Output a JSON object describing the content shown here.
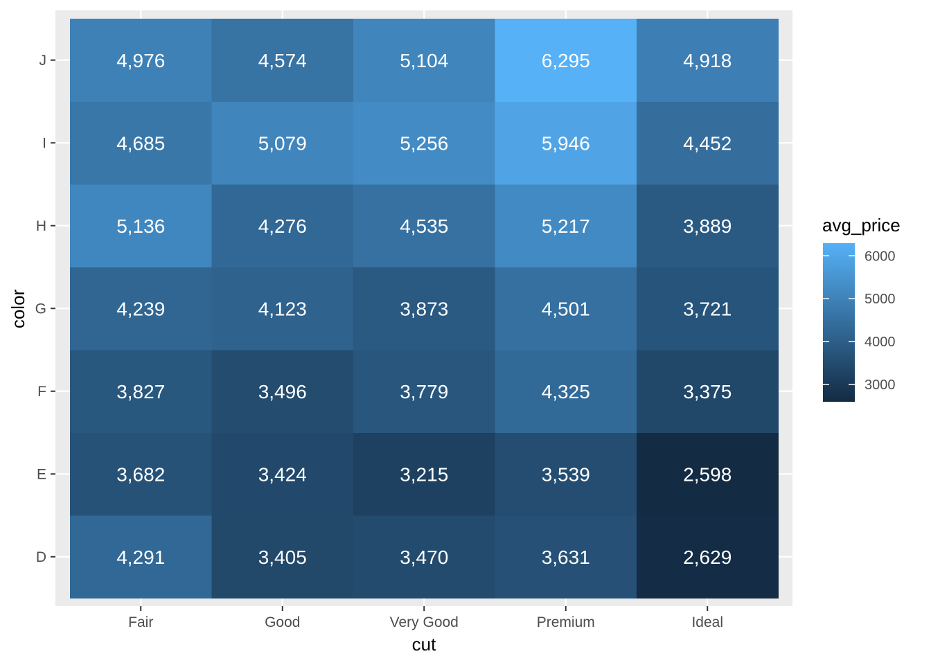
{
  "chart_data": {
    "type": "heatmap",
    "xlabel": "cut",
    "ylabel": "color",
    "x_categories": [
      "Fair",
      "Good",
      "Very Good",
      "Premium",
      "Ideal"
    ],
    "y_categories": [
      "D",
      "E",
      "F",
      "G",
      "H",
      "I",
      "J"
    ],
    "values": {
      "J": [
        4976,
        4574,
        5104,
        6295,
        4918
      ],
      "I": [
        4685,
        5079,
        5256,
        5946,
        4452
      ],
      "H": [
        5136,
        4276,
        4535,
        5217,
        3889
      ],
      "G": [
        4239,
        4123,
        3873,
        4501,
        3721
      ],
      "F": [
        3827,
        3496,
        3779,
        4325,
        3375
      ],
      "E": [
        3682,
        3424,
        3215,
        3539,
        2598
      ],
      "D": [
        4291,
        3405,
        3470,
        3631,
        2629
      ]
    },
    "labels": {
      "J": [
        "4,976",
        "4,574",
        "5,104",
        "6,295",
        "4,918"
      ],
      "I": [
        "4,685",
        "5,079",
        "5,256",
        "5,946",
        "4,452"
      ],
      "H": [
        "5,136",
        "4,276",
        "4,535",
        "5,217",
        "3,889"
      ],
      "G": [
        "4,239",
        "4,123",
        "3,873",
        "4,501",
        "3,721"
      ],
      "F": [
        "3,827",
        "3,496",
        "3,779",
        "4,325",
        "3,375"
      ],
      "E": [
        "3,682",
        "3,424",
        "3,215",
        "3,539",
        "2,598"
      ],
      "D": [
        "4,291",
        "3,405",
        "3,470",
        "3,631",
        "2,629"
      ]
    },
    "legend": {
      "title": "avg_price",
      "position": "right",
      "breaks": [
        3000,
        4000,
        5000,
        6000
      ],
      "break_labels": [
        "3000",
        "4000",
        "5000",
        "6000"
      ],
      "range": [
        2598,
        6295
      ]
    },
    "colors": {
      "low": "#132B43",
      "high": "#56B1F7",
      "panel_background": "#EBEBEB",
      "gridline": "#FFFFFF",
      "cell_text": "#FFFFFF"
    },
    "grid": true
  }
}
